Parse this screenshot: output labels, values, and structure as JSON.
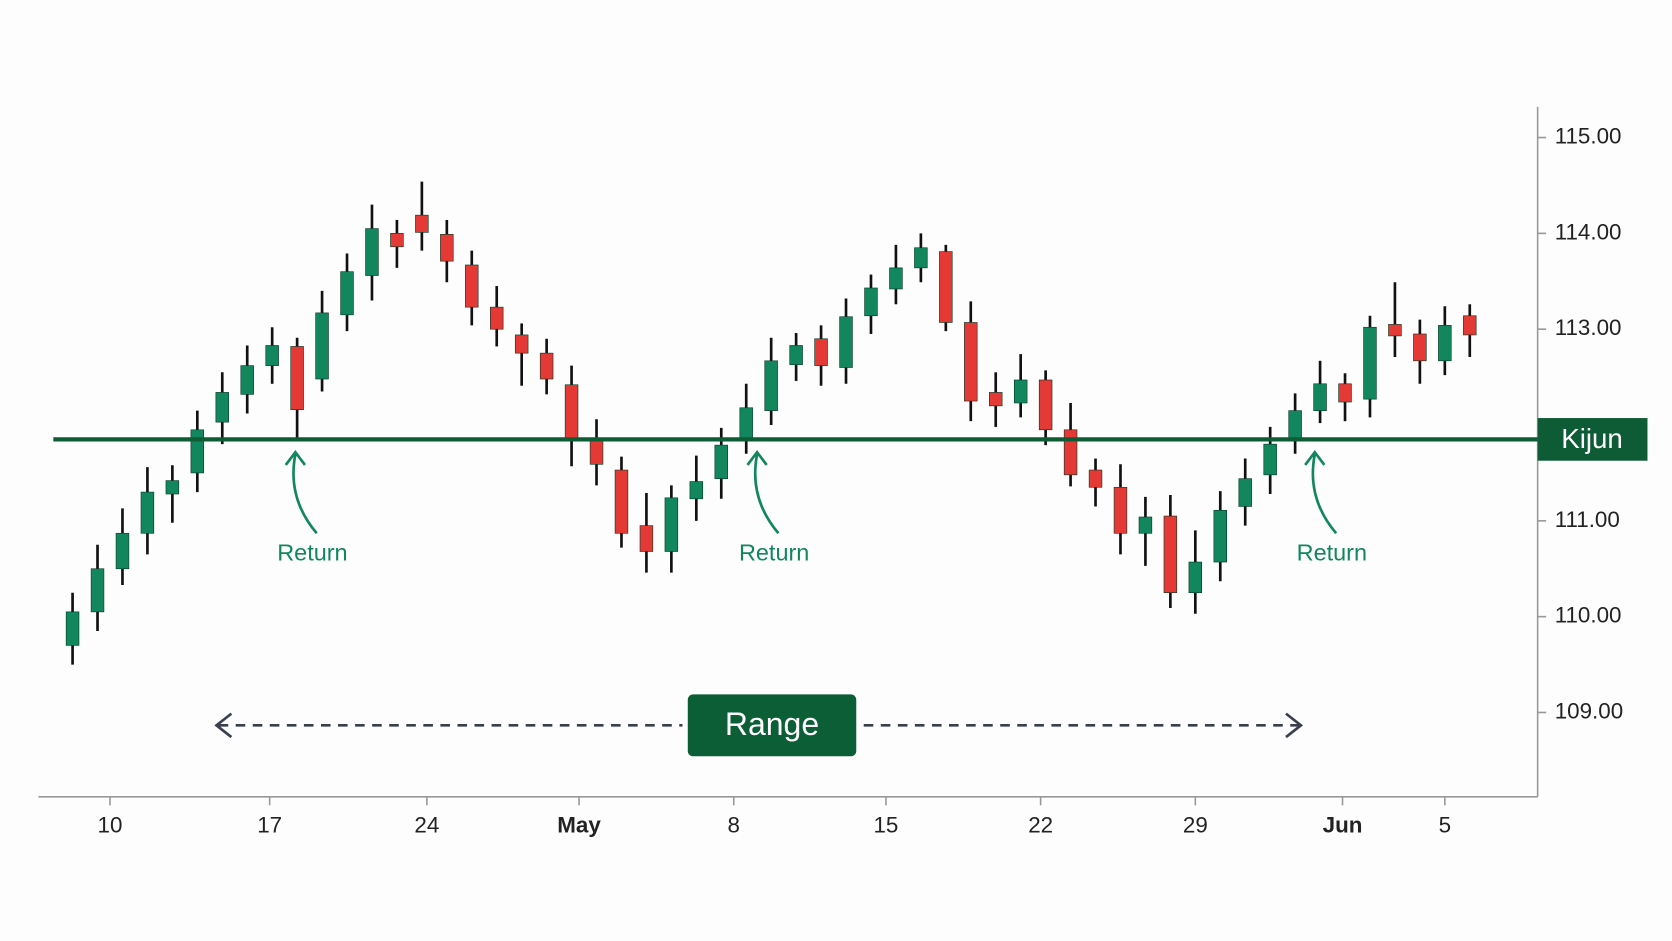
{
  "chart_data": {
    "type": "candlestick",
    "x": [
      0,
      1,
      2,
      3,
      4,
      5,
      6,
      7,
      8,
      9,
      10,
      11,
      12,
      13,
      14,
      15,
      16,
      17,
      18,
      19,
      20,
      21,
      22,
      23,
      24,
      25,
      26,
      27,
      28,
      29,
      30,
      31,
      32,
      33,
      34,
      35,
      36,
      37,
      38,
      39,
      40,
      41,
      42,
      43,
      44,
      45,
      46,
      47,
      48,
      49,
      50,
      51,
      52,
      53,
      54,
      55,
      56
    ],
    "open": [
      109.7,
      110.05,
      110.5,
      110.87,
      111.28,
      111.5,
      112.03,
      112.32,
      112.62,
      112.82,
      112.48,
      113.15,
      113.56,
      114.0,
      114.19,
      113.99,
      113.67,
      113.23,
      112.94,
      112.75,
      112.42,
      111.84,
      111.53,
      110.95,
      110.68,
      111.23,
      111.44,
      111.85,
      112.15,
      112.63,
      112.9,
      112.6,
      113.14,
      113.42,
      113.64,
      113.81,
      113.07,
      112.34,
      112.23,
      112.47,
      111.95,
      111.53,
      111.35,
      110.87,
      111.05,
      110.25,
      110.57,
      111.15,
      111.48,
      111.85,
      112.15,
      112.43,
      112.27,
      113.05,
      112.95,
      112.67,
      113.14
    ],
    "high": [
      110.25,
      110.75,
      111.13,
      111.56,
      111.58,
      112.15,
      112.55,
      112.83,
      113.02,
      112.91,
      113.4,
      113.79,
      114.3,
      114.14,
      114.54,
      114.14,
      113.82,
      113.45,
      113.06,
      112.9,
      112.62,
      112.06,
      111.67,
      111.29,
      111.37,
      111.68,
      111.97,
      112.43,
      112.91,
      112.96,
      113.04,
      113.32,
      113.57,
      113.88,
      114.0,
      113.88,
      113.29,
      112.55,
      112.74,
      112.57,
      112.23,
      111.65,
      111.59,
      111.25,
      111.27,
      110.9,
      111.31,
      111.65,
      111.98,
      112.33,
      112.67,
      112.54,
      113.14,
      113.49,
      113.1,
      113.24,
      113.26
    ],
    "low": [
      109.5,
      109.85,
      110.33,
      110.65,
      110.98,
      111.3,
      111.8,
      112.12,
      112.43,
      111.85,
      112.35,
      112.98,
      113.3,
      113.64,
      113.82,
      113.49,
      113.04,
      112.82,
      112.41,
      112.32,
      111.57,
      111.37,
      110.72,
      110.46,
      110.46,
      111.0,
      111.23,
      111.7,
      112.0,
      112.46,
      112.41,
      112.43,
      112.95,
      113.26,
      113.49,
      112.98,
      112.04,
      111.98,
      112.08,
      111.79,
      111.36,
      111.15,
      110.65,
      110.53,
      110.09,
      110.03,
      110.37,
      110.95,
      111.28,
      111.7,
      112.02,
      112.04,
      112.08,
      112.71,
      112.43,
      112.52,
      112.71
    ],
    "close": [
      110.05,
      110.5,
      110.87,
      111.3,
      111.42,
      111.95,
      112.34,
      112.62,
      112.83,
      112.16,
      113.17,
      113.6,
      114.05,
      113.86,
      114.01,
      113.71,
      113.23,
      113.0,
      112.75,
      112.48,
      111.85,
      111.59,
      110.87,
      110.68,
      111.24,
      111.41,
      111.79,
      112.18,
      112.67,
      112.83,
      112.62,
      113.13,
      113.43,
      113.64,
      113.85,
      113.07,
      112.25,
      112.2,
      112.47,
      111.95,
      111.48,
      111.35,
      110.87,
      111.04,
      110.25,
      110.57,
      111.11,
      111.44,
      111.8,
      112.15,
      112.43,
      112.24,
      113.02,
      112.93,
      112.67,
      113.04,
      112.94
    ],
    "up_color": "#12875e",
    "down_color": "#e53935",
    "xlim": [
      -1.37,
      58.72
    ],
    "xticks": [
      {
        "value": 1.5,
        "label": "10"
      },
      {
        "value": 7.9,
        "label": "17"
      },
      {
        "value": 14.2,
        "label": "24"
      },
      {
        "value": 20.3,
        "label": "May"
      },
      {
        "value": 26.5,
        "label": "8"
      },
      {
        "value": 32.6,
        "label": "15"
      },
      {
        "value": 38.8,
        "label": "22"
      },
      {
        "value": 45.0,
        "label": "29"
      },
      {
        "value": 50.9,
        "label": "Jun"
      },
      {
        "value": 55.0,
        "label": "5"
      }
    ],
    "ylim": [
      108.12,
      115.32
    ],
    "yticks": [
      {
        "value": 109,
        "label": "109.00"
      },
      {
        "value": 110,
        "label": "110.00"
      },
      {
        "value": 111,
        "label": "111.00"
      },
      {
        "value": 113,
        "label": "113.00"
      },
      {
        "value": 114,
        "label": "114.00"
      },
      {
        "value": 115,
        "label": "115.00"
      }
    ],
    "kijun": {
      "value": 111.85,
      "label": "Kijun",
      "color": "#0d5c36"
    },
    "annotations": [
      "Return",
      "Return",
      "Return"
    ],
    "range_label": "Range"
  }
}
